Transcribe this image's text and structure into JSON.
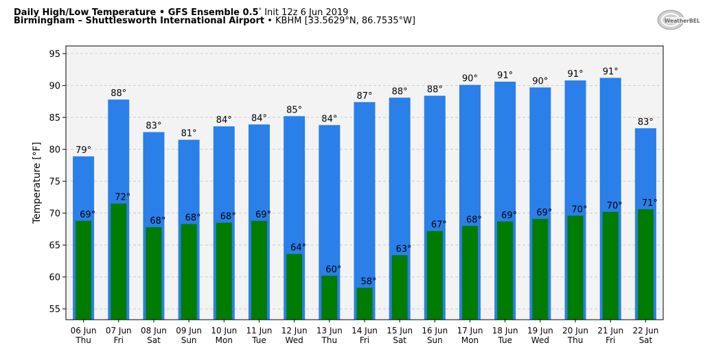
{
  "header": {
    "title_bold": "Daily High/Low Temperature • GFS Ensemble 0.5",
    "title_deg": "°",
    "title_init": " Init 12z 6 Jun 2019",
    "location_bold": "Birmingham – Shuttlesworth International Airport",
    "location_rest": " • KBHM [33.5629°N, 86.7535°W]"
  },
  "logo": {
    "text": "WeatherBELL",
    "icon": "weatherbell-logo-icon"
  },
  "colors": {
    "high": "#2b7fe9",
    "low": "#007d00",
    "plot_bg": "#f3f3f3",
    "grid": "#cccccc"
  },
  "chart_data": {
    "type": "bar",
    "title": "Daily High/Low Temperature • GFS Ensemble 0.5° Init 12z 6 Jun 2019",
    "ylabel": "Temperature [°F]",
    "xlabel": "",
    "ylim": [
      53.3,
      96.2
    ],
    "yticks": [
      55,
      60,
      65,
      70,
      75,
      80,
      85,
      90,
      95
    ],
    "grid": true,
    "categories": [
      "06 Jun",
      "07 Jun",
      "08 Jun",
      "09 Jun",
      "10 Jun",
      "11 Jun",
      "12 Jun",
      "13 Jun",
      "14 Jun",
      "15 Jun",
      "16 Jun",
      "17 Jun",
      "18 Jun",
      "19 Jun",
      "20 Jun",
      "21 Jun",
      "22 Jun"
    ],
    "weekdays": [
      "Thu",
      "Fri",
      "Sat",
      "Sun",
      "Mon",
      "Tue",
      "Wed",
      "Thu",
      "Fri",
      "Sat",
      "Sun",
      "Mon",
      "Tue",
      "Wed",
      "Thu",
      "Fri",
      "Sat"
    ],
    "series": [
      {
        "values": [
          78.9,
          87.8,
          82.7,
          81.5,
          83.6,
          83.9,
          85.2,
          83.8,
          87.4,
          88.1,
          88.4,
          90.1,
          90.6,
          89.7,
          90.8,
          91.2,
          83.3
        ],
        "labels": [
          "79°",
          "88°",
          "83°",
          "81°",
          "84°",
          "84°",
          "85°",
          "84°",
          "87°",
          "88°",
          "88°",
          "90°",
          "91°",
          "90°",
          "91°",
          "91°",
          "83°"
        ]
      },
      {
        "values": [
          68.8,
          71.5,
          67.8,
          68.3,
          68.5,
          68.8,
          63.6,
          60.2,
          58.3,
          63.4,
          67.2,
          68.0,
          68.7,
          69.1,
          69.6,
          70.2,
          70.6
        ],
        "labels": [
          "69°",
          "72°",
          "68°",
          "68°",
          "68°",
          "69°",
          "64°",
          "60°",
          "58°",
          "63°",
          "67°",
          "68°",
          "69°",
          "69°",
          "70°",
          "70°",
          "71°"
        ]
      }
    ]
  }
}
